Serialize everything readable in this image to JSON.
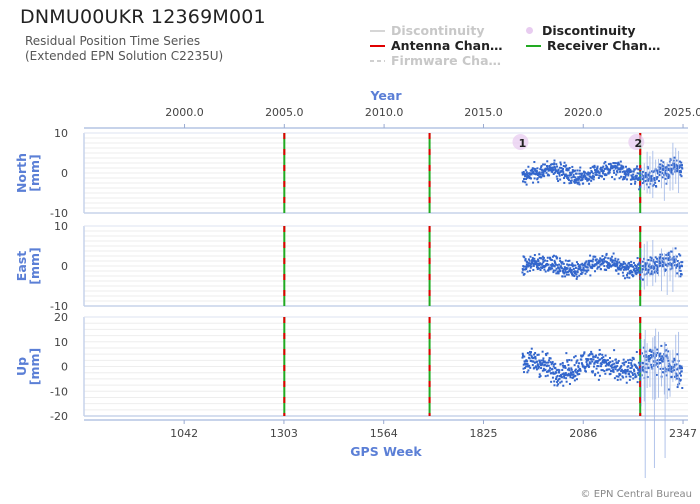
{
  "header": {
    "title": "DNMU00UKR 12369M001",
    "subtitle_line1": "Residual Position Time Series",
    "subtitle_line2": "(Extended EPN Solution C2235U)"
  },
  "legend": [
    {
      "label": "Discontinuity",
      "color": "#c8c8c8",
      "style": "line",
      "muted": true
    },
    {
      "label": "Discontinuity",
      "color": "#e8ccf0",
      "style": "dot",
      "muted": false
    },
    {
      "label": "Antenna Chan…",
      "color": "#e00000",
      "style": "line",
      "muted": false
    },
    {
      "label": "Receiver Chan…",
      "color": "#22aa22",
      "style": "line",
      "muted": false
    },
    {
      "label": "Firmware Cha…",
      "color": "#c8c8c8",
      "style": "dashed",
      "muted": true
    }
  ],
  "copyright": "© EPN Central Bureau",
  "colors": {
    "accent": "#5b7fd6",
    "data": "#3366cc",
    "antenna": "#e00000",
    "receiver": "#22aa22",
    "discontinuity": "#e8ccf0"
  },
  "chart_data": {
    "type": "scatter",
    "xlabel": "GPS Week",
    "x2label": "Year",
    "xlim": [
      780,
      2360
    ],
    "x_ticks": [
      1042,
      1303,
      1564,
      1825,
      2086,
      2347
    ],
    "year_ticks": [
      {
        "label": "2000.0",
        "week": 1043
      },
      {
        "label": "2005.0",
        "week": 1304
      },
      {
        "label": "2010.0",
        "week": 1565
      },
      {
        "label": "2015.0",
        "week": 1825
      },
      {
        "label": "2020.0",
        "week": 2086
      },
      {
        "label": "2025.0",
        "week": 2347
      }
    ],
    "data_range_weeks": [
      1927,
      2345
    ],
    "antenna_changes": [
      1304,
      1684,
      2235
    ],
    "receiver_changes": [
      1304,
      1684,
      2235
    ],
    "discontinuities": [
      {
        "label": "1",
        "week": 1927
      },
      {
        "label": "2",
        "week": 2230
      }
    ],
    "panels": [
      {
        "name": "North",
        "ylabel": "North\n[mm]",
        "ylim": [
          -10,
          10
        ],
        "yticks": [
          10,
          0,
          -10
        ],
        "amplitude": 2.5
      },
      {
        "name": "East",
        "ylabel": "East\n[mm]",
        "ylim": [
          -10,
          10
        ],
        "yticks": [
          10,
          0,
          -10
        ],
        "amplitude": 2.5
      },
      {
        "name": "Up",
        "ylabel": "Up\n[mm]",
        "ylim": [
          -20,
          20
        ],
        "yticks": [
          20,
          10,
          0,
          -10,
          -20
        ],
        "amplitude": 6
      }
    ],
    "grid": true
  }
}
